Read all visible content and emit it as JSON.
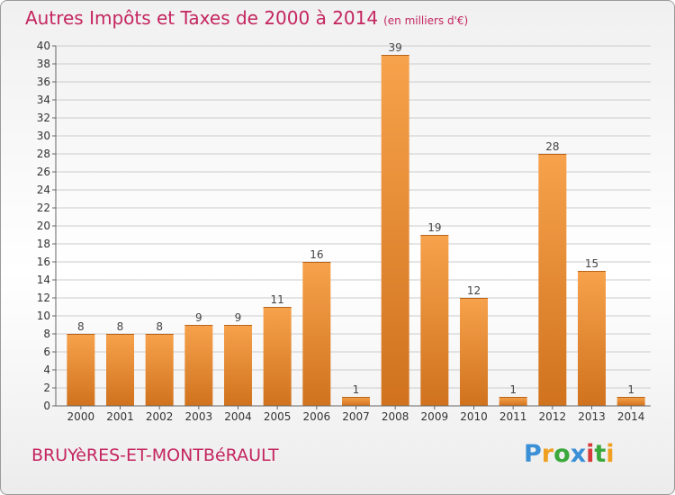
{
  "header": {
    "title": "Autres Impôts et Taxes de 2000 à 2014",
    "subtitle": "(en milliers d'€)"
  },
  "footer": {
    "commune": "BRUYèRES-ET-MONTBéRAULT"
  },
  "logo": {
    "letters": [
      "P",
      "r",
      "o",
      "x",
      "i",
      "t",
      "i"
    ],
    "colors": [
      "#3a8fd6",
      "#f0a020",
      "#3aa83a",
      "#3a8fd6",
      "#d63a3a",
      "#3aa83a",
      "#f0a020"
    ]
  },
  "colors": {
    "accent": "#c4255f",
    "bar_light": "#f7a24c",
    "bar_dark": "#d0721e",
    "grid": "#cccccc",
    "axis": "#666666"
  },
  "chart_data": {
    "type": "bar",
    "title": "Autres Impôts et Taxes de 2000 à 2014",
    "subtitle": "(en milliers d'€)",
    "categories": [
      "2000",
      "2001",
      "2002",
      "2003",
      "2004",
      "2005",
      "2006",
      "2007",
      "2008",
      "2009",
      "2010",
      "2011",
      "2012",
      "2013",
      "2014"
    ],
    "values": [
      8,
      8,
      8,
      9,
      9,
      11,
      16,
      1,
      39,
      19,
      12,
      1,
      28,
      15,
      1
    ],
    "ylim": [
      0,
      40
    ],
    "ytick_step": 2,
    "grid": true,
    "data_labels": true
  }
}
